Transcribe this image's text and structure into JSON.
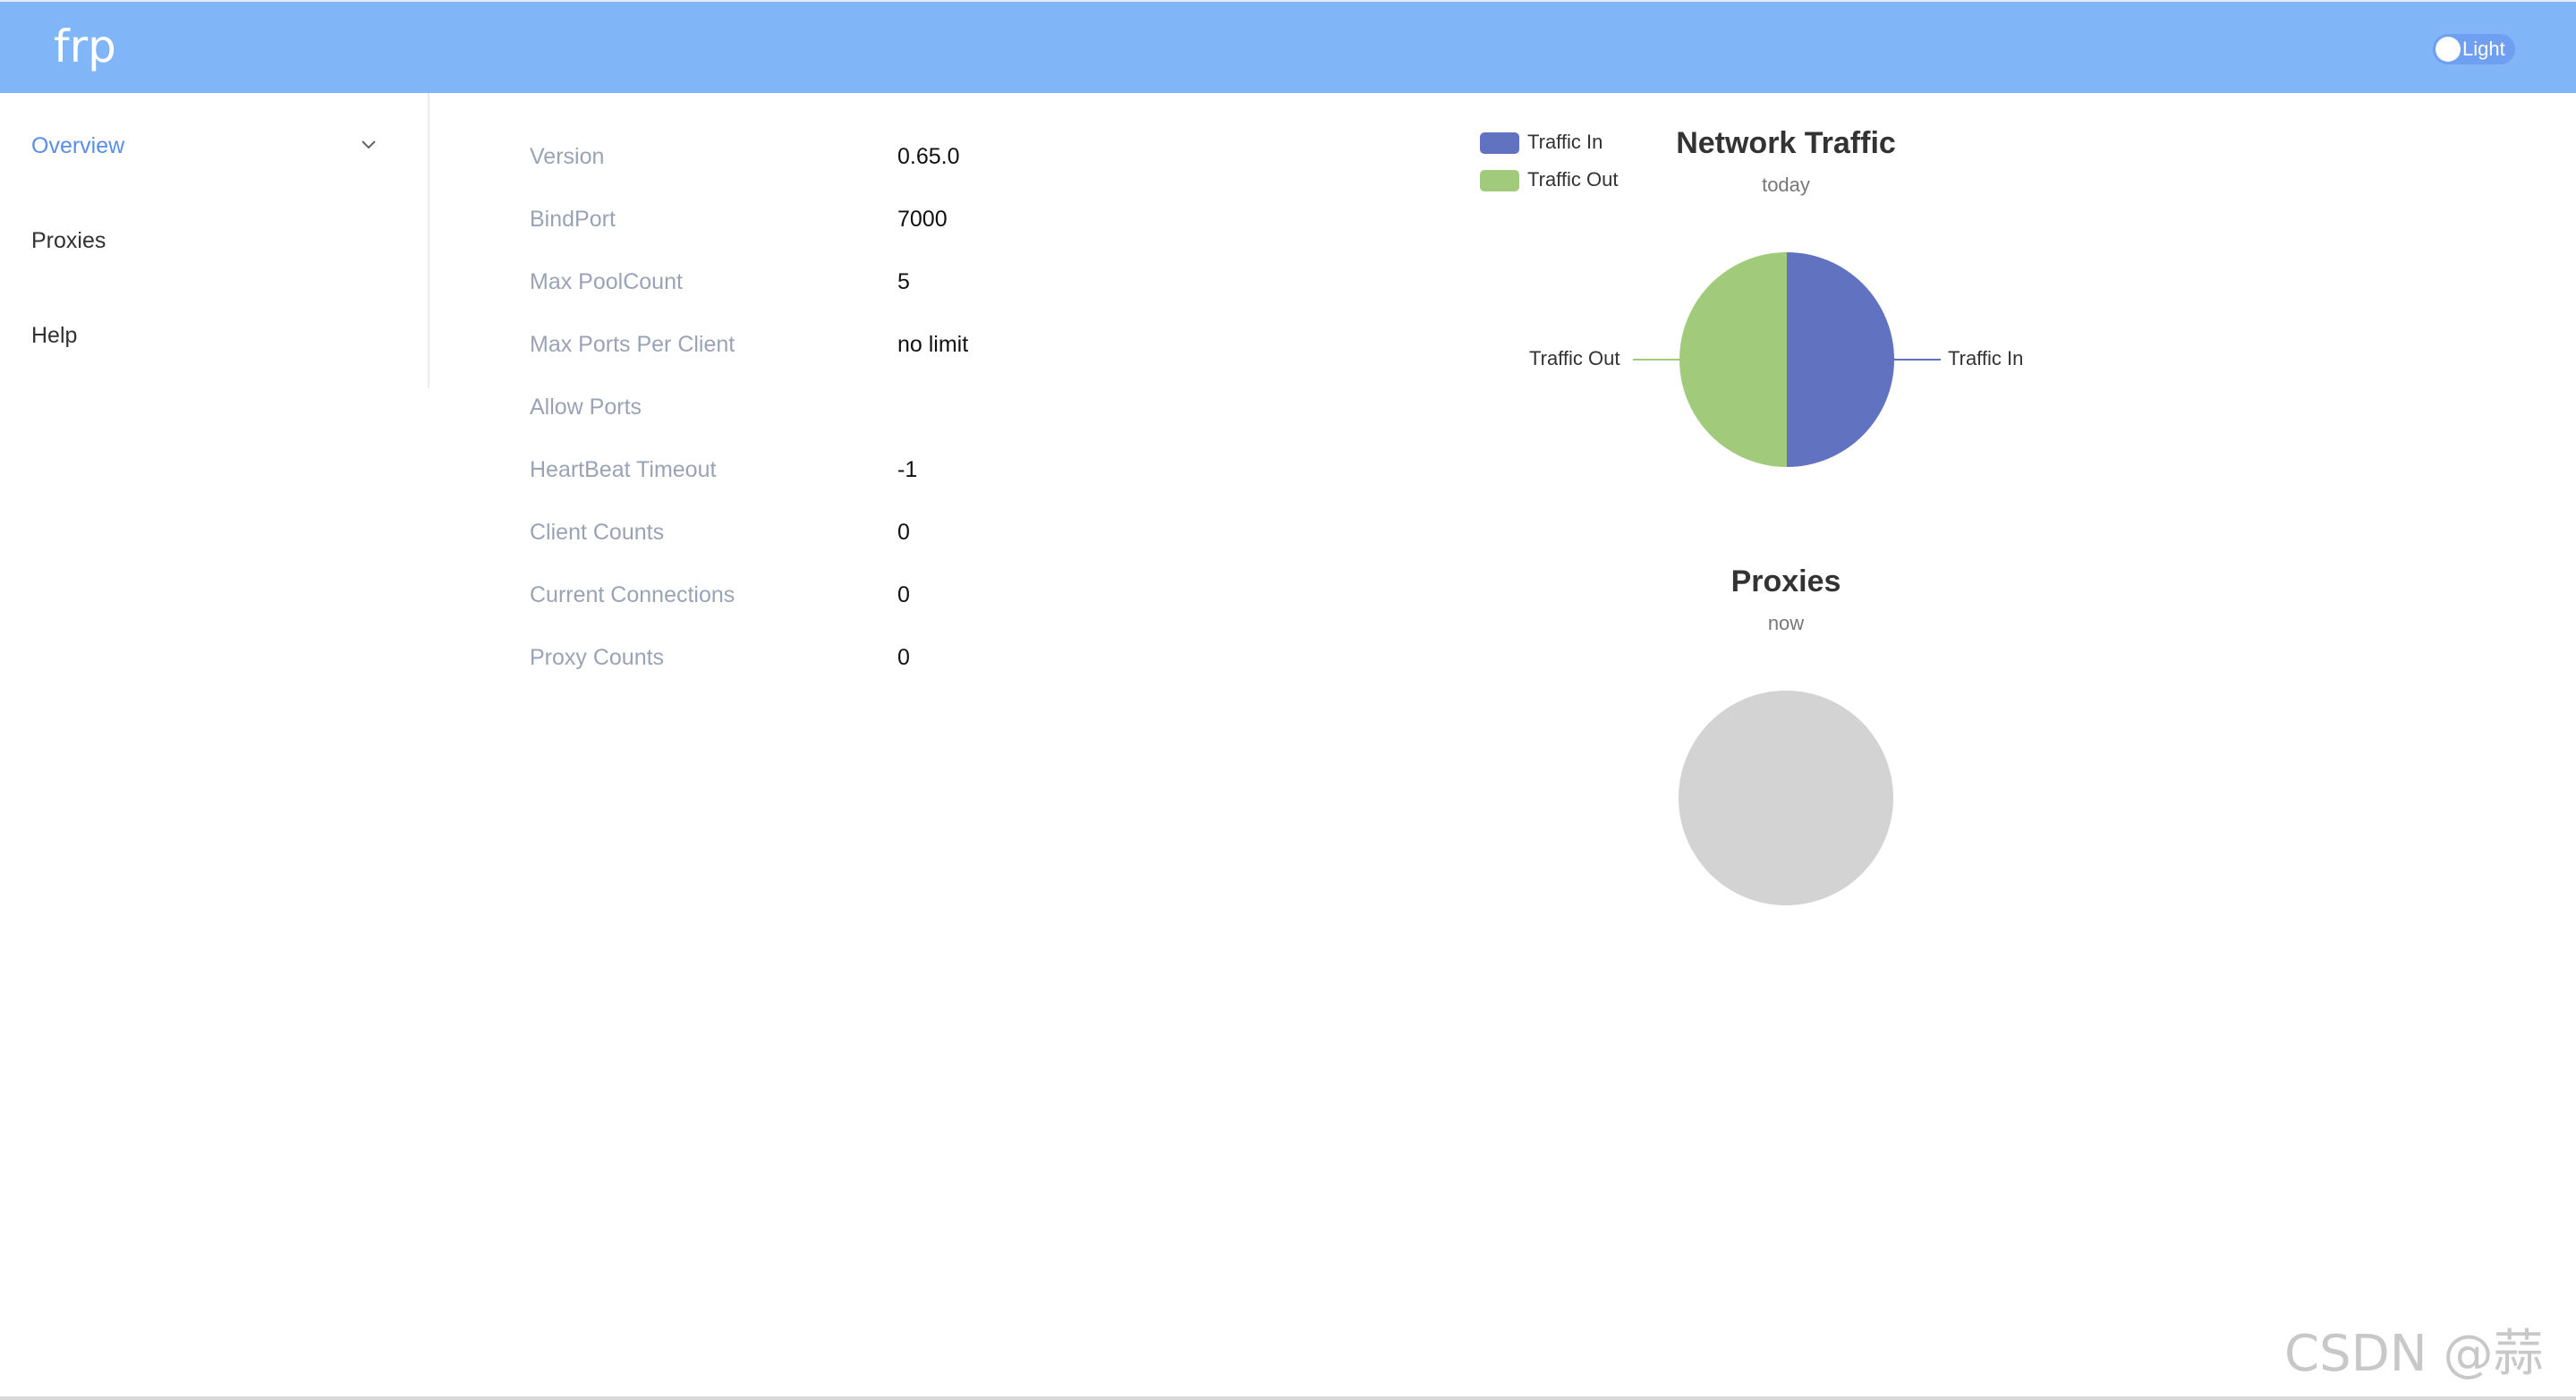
{
  "header": {
    "logo": "frp",
    "theme_toggle_label": "Light"
  },
  "sidebar": {
    "items": [
      {
        "label": "Overview",
        "active": true
      },
      {
        "label": "Proxies",
        "expandable": true
      },
      {
        "label": "Help"
      }
    ]
  },
  "server_info": [
    {
      "label": "Version",
      "value": "0.65.0"
    },
    {
      "label": "BindPort",
      "value": "7000"
    },
    {
      "label": "Max PoolCount",
      "value": "5"
    },
    {
      "label": "Max Ports Per Client",
      "value": "no limit"
    },
    {
      "label": "Allow Ports",
      "value": ""
    },
    {
      "label": "HeartBeat Timeout",
      "value": "-1"
    },
    {
      "label": "Client Counts",
      "value": "0"
    },
    {
      "label": "Current Connections",
      "value": "0"
    },
    {
      "label": "Proxy Counts",
      "value": "0"
    }
  ],
  "colors": {
    "header": "#80b5f8",
    "active_nav": "#5b8ee6",
    "traffic_in": "#6172c1",
    "traffic_out": "#a1ca7b",
    "empty_pie": "#d3d3d3"
  },
  "chart_data": [
    {
      "type": "pie",
      "title": "Network Traffic",
      "subtitle": "today",
      "legend": [
        "Traffic In",
        "Traffic Out"
      ],
      "legend_position": "top-left",
      "slices": [
        {
          "name": "Traffic In",
          "value": 50
        },
        {
          "name": "Traffic Out",
          "value": 50
        }
      ]
    },
    {
      "type": "pie",
      "title": "Proxies",
      "subtitle": "now",
      "slices": []
    }
  ],
  "watermark": "CSDN @蒜丶"
}
